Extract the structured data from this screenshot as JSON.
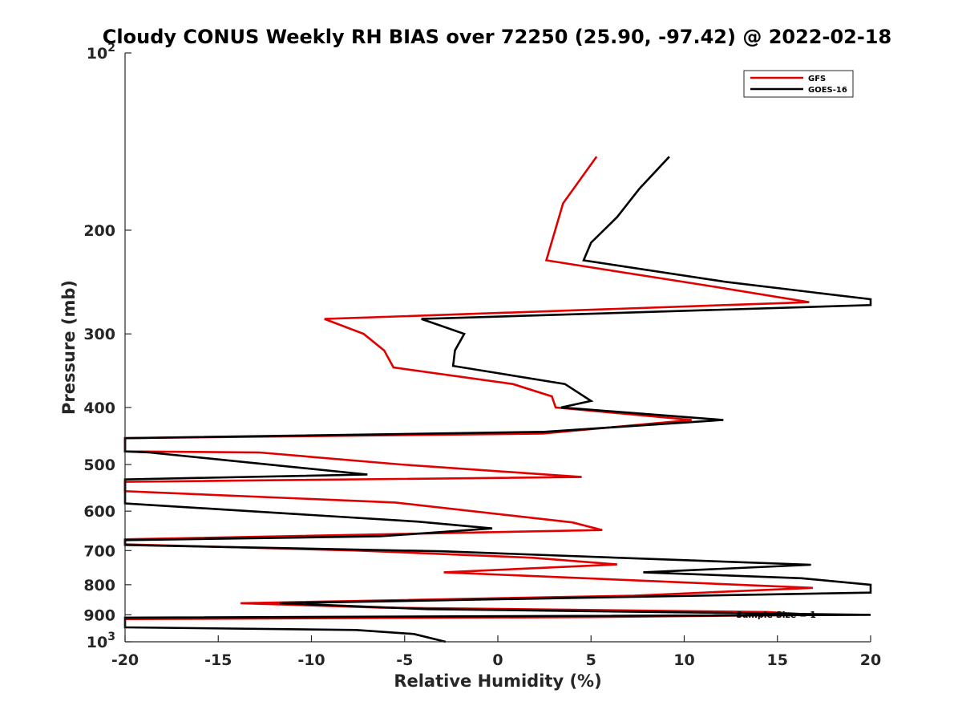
{
  "chart_data": {
    "type": "line",
    "title": "Cloudy CONUS Weekly RH BIAS over 72250 (25.90, -97.42) @ 2022-02-18",
    "xlabel": "Relative Humidity (%)",
    "ylabel": "Pressure (mb)",
    "xlim": [
      -20,
      20
    ],
    "ylim": [
      100,
      1000
    ],
    "y_scale": "log",
    "y_reversed": true,
    "grid": false,
    "legend_position": "top-right",
    "x_ticks": [
      -20,
      -15,
      -10,
      -5,
      0,
      5,
      10,
      15,
      20
    ],
    "x_tick_labels": [
      "-20",
      "-15",
      "-10",
      "-5",
      "0",
      "5",
      "10",
      "15",
      "20"
    ],
    "y_ticks": [
      {
        "value": 100,
        "base": "10",
        "exp": "2"
      },
      {
        "value": 200,
        "base": "200",
        "exp": ""
      },
      {
        "value": 300,
        "base": "300",
        "exp": ""
      },
      {
        "value": 400,
        "base": "400",
        "exp": ""
      },
      {
        "value": 500,
        "base": "500",
        "exp": ""
      },
      {
        "value": 600,
        "base": "600",
        "exp": ""
      },
      {
        "value": 700,
        "base": "700",
        "exp": ""
      },
      {
        "value": 800,
        "base": "800",
        "exp": ""
      },
      {
        "value": 900,
        "base": "900",
        "exp": ""
      },
      {
        "value": 1000,
        "base": "10",
        "exp": "3"
      }
    ],
    "annotation": "Sample Size = 1",
    "series": [
      {
        "name": "GFS",
        "color": "#e00000",
        "points": [
          [
            5.3,
            150
          ],
          [
            3.5,
            180
          ],
          [
            2.6,
            225
          ],
          [
            11.1,
            248
          ],
          [
            16.7,
            265
          ],
          [
            -9.3,
            283
          ],
          [
            -7.2,
            300
          ],
          [
            -6.1,
            320
          ],
          [
            -5.6,
            342
          ],
          [
            0.8,
            365
          ],
          [
            2.9,
            383
          ],
          [
            3.1,
            400
          ],
          [
            10.4,
            420
          ],
          [
            2.4,
            443
          ],
          [
            -20.0,
            451
          ],
          [
            -20.0,
            475
          ],
          [
            -12.8,
            477
          ],
          [
            -5.2,
            500
          ],
          [
            4.5,
            525
          ],
          [
            -20.0,
            535
          ],
          [
            -20.0,
            555
          ],
          [
            -5.5,
            580
          ],
          [
            4.0,
            627
          ],
          [
            5.6,
            646
          ],
          [
            -20.0,
            670
          ],
          [
            -20.0,
            683
          ],
          [
            -7.5,
            700
          ],
          [
            1.9,
            720
          ],
          [
            6.4,
            739
          ],
          [
            -2.9,
            762
          ],
          [
            6.7,
            785
          ],
          [
            16.9,
            810
          ],
          [
            7.3,
            835
          ],
          [
            -13.8,
            860
          ],
          [
            -6.3,
            875
          ],
          [
            14.5,
            890
          ],
          [
            17.0,
            900
          ],
          [
            5.0,
            908
          ],
          [
            -20.0,
            915
          ]
        ]
      },
      {
        "name": "GOES-16",
        "color": "#000000",
        "points": [
          [
            9.2,
            150
          ],
          [
            7.6,
            170
          ],
          [
            6.4,
            190
          ],
          [
            5.0,
            210
          ],
          [
            4.6,
            225
          ],
          [
            12.3,
            245
          ],
          [
            20.0,
            262
          ],
          [
            20.0,
            268
          ],
          [
            -4.1,
            283
          ],
          [
            -1.8,
            300
          ],
          [
            -2.3,
            320
          ],
          [
            -2.4,
            340
          ],
          [
            3.6,
            365
          ],
          [
            5.0,
            390
          ],
          [
            3.4,
            400
          ],
          [
            12.1,
            420
          ],
          [
            2.5,
            440
          ],
          [
            -20.0,
            451
          ],
          [
            -20.0,
            475
          ],
          [
            -18.7,
            477
          ],
          [
            -7.0,
            520
          ],
          [
            -20.0,
            530
          ],
          [
            -20.0,
            582
          ],
          [
            -4.3,
            625
          ],
          [
            -0.3,
            642
          ],
          [
            -6.3,
            662
          ],
          [
            -20.0,
            672
          ],
          [
            -20.0,
            685
          ],
          [
            -3.0,
            702
          ],
          [
            16.8,
            740
          ],
          [
            7.8,
            762
          ],
          [
            16.3,
            780
          ],
          [
            20.0,
            800
          ],
          [
            20.0,
            825
          ],
          [
            -11.7,
            860
          ],
          [
            -3.8,
            880
          ],
          [
            20.0,
            900
          ],
          [
            -20.0,
            910
          ],
          [
            -20.0,
            945
          ],
          [
            -7.6,
            955
          ],
          [
            -4.5,
            970
          ],
          [
            -2.8,
            1000
          ]
        ]
      }
    ]
  }
}
